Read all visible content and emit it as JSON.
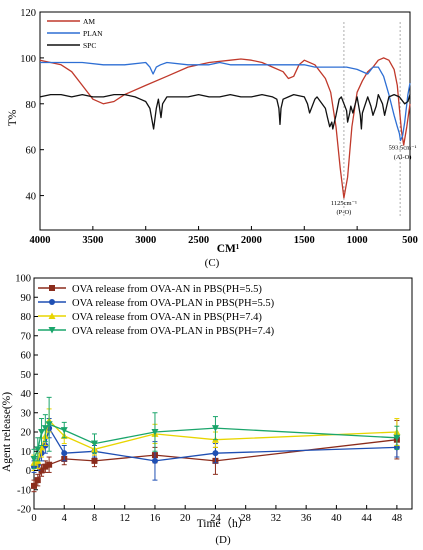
{
  "chart_data": [
    {
      "type": "line",
      "panel_label": "(C)",
      "xlabel": "CM¹",
      "ylabel": "T%",
      "xlim": [
        4000,
        500
      ],
      "ylim": [
        25,
        120
      ],
      "xticks": [
        4000,
        3500,
        3000,
        2500,
        2000,
        1500,
        1000,
        500
      ],
      "yticks": [
        40,
        60,
        80,
        100,
        120
      ],
      "legend_position": "top-left",
      "series": [
        {
          "name": "AM",
          "color": "#c0392b",
          "x": [
            4000,
            3800,
            3700,
            3600,
            3500,
            3400,
            3300,
            3200,
            3000,
            2800,
            2600,
            2400,
            2200,
            2100,
            2000,
            1900,
            1800,
            1700,
            1650,
            1600,
            1550,
            1500,
            1400,
            1300,
            1250,
            1200,
            1160,
            1125,
            1090,
            1050,
            1000,
            950,
            900,
            850,
            800,
            750,
            700,
            650,
            620,
            600,
            580,
            560,
            530,
            500
          ],
          "y": [
            99,
            97,
            94,
            88,
            82,
            80,
            81,
            84,
            88,
            92,
            96,
            98,
            99,
            99.5,
            99,
            98,
            96,
            94,
            91,
            92,
            97,
            99,
            97,
            91,
            85,
            70,
            52,
            39,
            48,
            70,
            85,
            90,
            94,
            96,
            99,
            100,
            99,
            95,
            88,
            78,
            68,
            62,
            70,
            80
          ]
        },
        {
          "name": "PLAN",
          "color": "#2e6fd4",
          "x": [
            4000,
            3800,
            3600,
            3400,
            3200,
            3000,
            2960,
            2930,
            2900,
            2860,
            2800,
            2600,
            2400,
            2300,
            2200,
            2100,
            2000,
            1900,
            1800,
            1700,
            1600,
            1500,
            1400,
            1300,
            1200,
            1100,
            1000,
            900,
            850,
            800,
            750,
            700,
            650,
            620,
            600,
            590,
            570,
            550,
            520,
            500
          ],
          "y": [
            98,
            98,
            98,
            97,
            97,
            98,
            96,
            93,
            96,
            97,
            98,
            97,
            97,
            98,
            97,
            97,
            97,
            97,
            97,
            97,
            97,
            97,
            96,
            96,
            96,
            96,
            95,
            93,
            96,
            96,
            92,
            84,
            75,
            70,
            67,
            64,
            66,
            72,
            84,
            89
          ]
        },
        {
          "name": "SPC",
          "color": "#111111",
          "x": [
            4000,
            3900,
            3800,
            3700,
            3600,
            3500,
            3400,
            3300,
            3200,
            3100,
            3050,
            3000,
            2960,
            2925,
            2900,
            2880,
            2855,
            2840,
            2800,
            2700,
            2600,
            2500,
            2400,
            2300,
            2200,
            2100,
            2000,
            1900,
            1800,
            1760,
            1740,
            1730,
            1720,
            1700,
            1650,
            1600,
            1500,
            1470,
            1450,
            1400,
            1380,
            1300,
            1280,
            1260,
            1240,
            1230,
            1200,
            1170,
            1150,
            1100,
            1090,
            1070,
            1060,
            1040,
            1000,
            970,
            960,
            950,
            900,
            870,
            850,
            820,
            800,
            760,
            740,
            720,
            700,
            650,
            600,
            550,
            520,
            500
          ],
          "y": [
            83,
            84,
            84,
            83,
            84,
            83,
            83,
            84,
            84,
            83,
            82,
            81,
            78,
            69,
            78,
            82,
            74,
            80,
            83,
            83,
            83,
            84,
            83,
            83,
            84,
            83,
            83,
            84,
            83,
            82,
            78,
            71,
            78,
            82,
            83,
            84,
            83,
            80,
            76,
            82,
            83,
            78,
            74,
            70,
            72,
            69,
            75,
            82,
            83,
            77,
            72,
            76,
            79,
            76,
            83,
            75,
            69,
            76,
            83,
            79,
            75,
            79,
            84,
            80,
            75,
            79,
            83,
            84,
            83,
            80,
            81,
            84
          ]
        }
      ],
      "annotations": [
        {
          "text": "1125cm⁻¹",
          "x": 1125,
          "y": 36
        },
        {
          "text": "(P-O)",
          "x": 1125,
          "y": 32
        },
        {
          "text": "593.5cm⁻¹",
          "x": 570,
          "y": 60
        },
        {
          "text": "(Al-O)",
          "x": 570,
          "y": 56
        }
      ],
      "reference_lines_x": [
        1125,
        593.5
      ]
    },
    {
      "type": "line",
      "panel_label": "(D)",
      "xlabel": "Time（h）",
      "ylabel": "Agent release(%)",
      "xlim": [
        0,
        50
      ],
      "ylim": [
        -20,
        100
      ],
      "xticks": [
        0,
        4,
        8,
        12,
        16,
        20,
        24,
        28,
        32,
        36,
        40,
        44,
        48
      ],
      "yticks": [
        -20,
        -10,
        0,
        10,
        20,
        30,
        40,
        50,
        60,
        70,
        80,
        90,
        100
      ],
      "legend_position": "top-left",
      "x": [
        0,
        0.5,
        1,
        1.5,
        2,
        4,
        8,
        16,
        24,
        48
      ],
      "series": [
        {
          "name": "OVA release from OVA-AN in PBS(PH=5.5)",
          "color": "#8b2c1c",
          "marker": "square",
          "values": [
            -8,
            -5,
            0,
            2,
            3,
            6,
            5,
            8,
            5,
            16
          ],
          "errors": [
            3,
            3,
            3,
            3,
            4,
            3,
            3,
            4,
            7,
            10
          ]
        },
        {
          "name": "OVA release from OVA-PLAN in PBS(PH=5.5)",
          "color": "#1f4fb3",
          "marker": "circle",
          "values": [
            2,
            3,
            9,
            13,
            22,
            9,
            10,
            5,
            9,
            12
          ],
          "errors": [
            3,
            3,
            4,
            4,
            5,
            4,
            3,
            10,
            5,
            5
          ]
        },
        {
          "name": "OVA release from OVA-AN in PBS(PH=7.4)",
          "color": "#e8d500",
          "marker": "triangle-up",
          "values": [
            4,
            5,
            12,
            18,
            26,
            18,
            11,
            19,
            16,
            20
          ],
          "errors": [
            4,
            4,
            5,
            5,
            6,
            4,
            3,
            5,
            4,
            7
          ]
        },
        {
          "name": "OVA release from OVA-PLAN in PBS(PH=7.4)",
          "color": "#1aa56b",
          "marker": "triangle-down",
          "values": [
            6,
            11,
            20,
            22,
            24,
            21,
            14,
            20,
            22,
            17
          ],
          "errors": [
            5,
            6,
            7,
            7,
            14,
            4,
            5,
            10,
            6,
            6
          ]
        }
      ]
    }
  ]
}
